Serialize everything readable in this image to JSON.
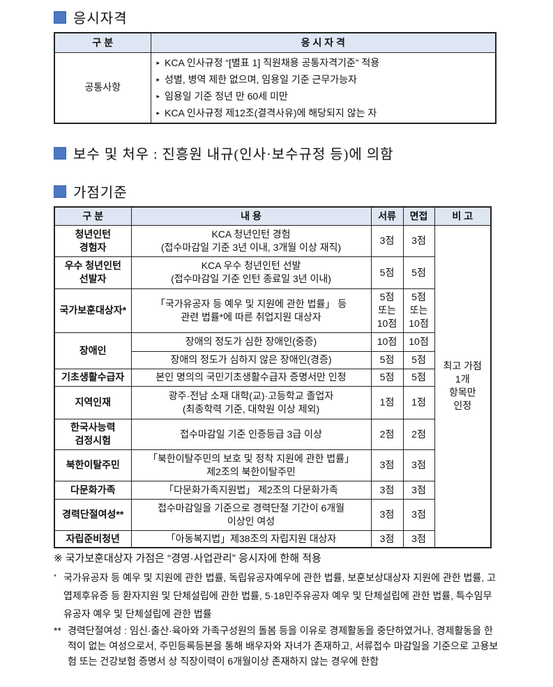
{
  "section1": {
    "title": "응시자격",
    "headers": [
      "구 분",
      "응 시 자 격"
    ],
    "row_label": "공통사항",
    "items": [
      "KCA 인사규정 “[별표 1] 직원채용 공통자격기준” 적용",
      "성별, 병역 제한 없으며, 임용일 기준 근무가능자",
      "임용일 기준 정년 만 60세 미만",
      "KCA 인사규정 제12조(결격사유)에 해당되지 않는 자"
    ]
  },
  "section2": {
    "title": "보수 및 처우 : 진흥원 내규(인사·보수규정 등)에 의함"
  },
  "section3": {
    "title": "가점기준",
    "headers": [
      "구 분",
      "내 용",
      "서류",
      "면접",
      "비 고"
    ],
    "rows": [
      {
        "category": "청년인턴\n경험자",
        "content": "KCA 청년인턴 경험\n(접수마감일 기준 3년 이내, 3개월 이상 재직)",
        "doc": "3점",
        "interview": "3점"
      },
      {
        "category": "우수 청년인턴\n선발자",
        "content": "KCA 우수 청년인턴 선발\n(접수마감일 기준 인턴 종료일 3년 이내)",
        "doc": "5점",
        "interview": "5점"
      },
      {
        "category": "국가보훈대상자*",
        "content": "「국가유공자 등 예우 및 지원에 관한 법률」 등\n관련 법률*에 따른 취업지원 대상자",
        "doc": "5점\n또는\n10점",
        "interview": "5점\n또는\n10점"
      },
      {
        "category": "장애인",
        "content": "장애의 정도가 심한 장애인(중증)",
        "doc": "10점",
        "interview": "10점"
      },
      {
        "category": "",
        "content": "장애의 정도가 심하지 않은 장애인(경증)",
        "doc": "5점",
        "interview": "5점"
      },
      {
        "category": "기초생활수급자",
        "content": "본인 명의의 국민기초생활수급자 증명서만 인정",
        "doc": "5점",
        "interview": "5점"
      },
      {
        "category": "지역인재",
        "content": "광주·전남 소재 대학(교)·고등학교 졸업자\n(최종학력 기준, 대학원 이상 제외)",
        "doc": "1점",
        "interview": "1점"
      },
      {
        "category": "한국사능력\n검정시험",
        "content": "접수마감일 기준 인증등급 3급 이상",
        "doc": "2점",
        "interview": "2점"
      },
      {
        "category": "북한이탈주민",
        "content": "「북한이탈주민의 보호 및 정착 지원에 관한 법률」\n제2조의 북한이탈주민",
        "doc": "3점",
        "interview": "3점"
      },
      {
        "category": "다문화가족",
        "content": "「다문화가족지원법」 제2조의 다문화가족",
        "doc": "3점",
        "interview": "3점"
      },
      {
        "category": "경력단절여성**",
        "content": "접수마감일을 기준으로 경력단절 기간이 6개월\n이상인 여성",
        "doc": "3점",
        "interview": "3점"
      },
      {
        "category": "자립준비청년",
        "content": "「아동복지법」제38조의 자립지원 대상자",
        "doc": "3점",
        "interview": "3점"
      }
    ],
    "remark": "최고 가점\n1개\n항목만\n인정"
  },
  "notes": {
    "n1": "※ 국가보훈대상자 가점은 “경영·사업관리” 응시자에 한해 적용",
    "n2_mark": "*",
    "n2": "국가유공자 등 예우 및 지원에 관한 법률, 독립유공자예우에 관한 법률, 보훈보상대상자 지원에 관한 법률, 고엽제후유증 등 환자지원 및 단체설립에 관한 법률, 5·18민주유공자 예우 및 단체설립에 관한 법률, 특수임무유공자 예우 및 단체설립에 관한 법률",
    "n3_mark": "**",
    "n3": "경력단절여성 : 임신·출산·육아와 가족구성원의 돌봄 등을 이유로 경제활동을 중단하였거나, 경제활동을 한 적이 없는 여성으로서, 주민등록등본을 통해 배우자와 자녀가 존재하고, 서류접수 마감일을 기준으로 고용보험 또는 건강보험 증명서 상 직장이력이 6개월이상 존재하지 않는 경우에 한함"
  },
  "colors": {
    "accent": "#4a78c2",
    "header_bg": "#dfe6f3"
  }
}
